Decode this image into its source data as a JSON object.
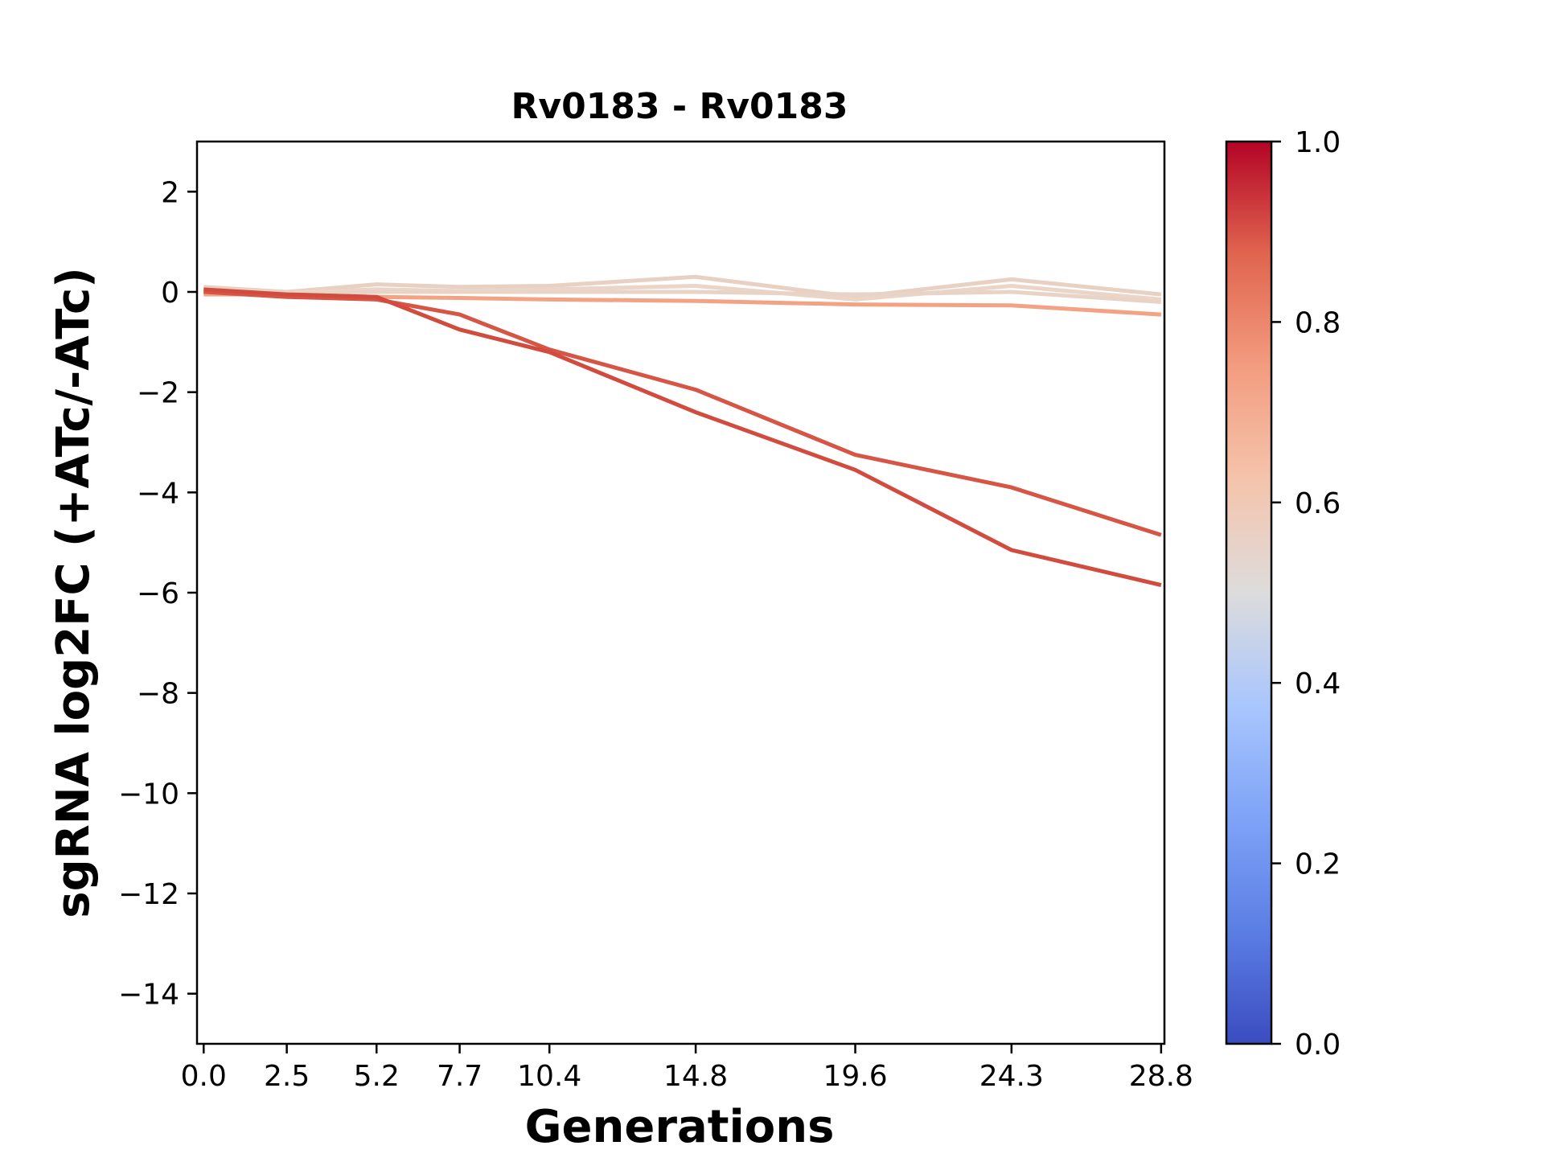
{
  "chart_data": {
    "type": "line",
    "title": "Rv0183 - Rv0183",
    "xlabel": "Generations",
    "ylabel": "sgRNA log2FC (+ATc/-ATc)",
    "x": [
      0.0,
      2.5,
      5.2,
      7.7,
      10.4,
      14.8,
      19.6,
      24.3,
      28.8
    ],
    "x_tick_labels": [
      "0.0",
      "2.5",
      "5.2",
      "7.7",
      "10.4",
      "14.8",
      "19.6",
      "24.3",
      "28.8"
    ],
    "xlim": [
      -0.2,
      28.9
    ],
    "ylim": [
      -15,
      3
    ],
    "y_ticks": [
      2,
      0,
      -2,
      -4,
      -6,
      -8,
      -10,
      -12,
      -14
    ],
    "y_tick_labels": [
      "2",
      "0",
      "−2",
      "−4",
      "−6",
      "−8",
      "−10",
      "−12",
      "−14"
    ],
    "grid": false,
    "colorbar": {
      "colormap": "coolwarm",
      "range": [
        0.0,
        1.0
      ],
      "ticks": [
        0.0,
        0.2,
        0.4,
        0.6,
        0.8,
        1.0
      ],
      "tick_labels": [
        "0.0",
        "0.2",
        "0.4",
        "0.6",
        "0.8",
        "1.0"
      ]
    },
    "series": [
      {
        "color_value": 0.58,
        "color": "#e8d0c2",
        "values": [
          0.1,
          0.0,
          0.15,
          0.1,
          0.12,
          0.3,
          -0.1,
          0.25,
          -0.05
        ]
      },
      {
        "color_value": 0.57,
        "color": "#ead5c8",
        "values": [
          0.05,
          -0.02,
          0.05,
          0.02,
          0.05,
          0.12,
          -0.15,
          0.12,
          -0.15
        ]
      },
      {
        "color_value": 0.56,
        "color": "#e8d4c6",
        "values": [
          0.0,
          -0.05,
          0.0,
          0.0,
          0.0,
          0.0,
          -0.05,
          0.0,
          -0.2
        ]
      },
      {
        "color_value": 0.72,
        "color": "#f3a383",
        "values": [
          -0.05,
          -0.05,
          -0.1,
          -0.12,
          -0.15,
          -0.18,
          -0.25,
          -0.27,
          -0.45
        ]
      },
      {
        "color_value": 0.9,
        "color": "#d65545",
        "values": [
          0.0,
          -0.1,
          -0.15,
          -0.45,
          -1.15,
          -1.95,
          -3.25,
          -3.9,
          -4.85
        ]
      },
      {
        "color_value": 0.92,
        "color": "#d24b3f",
        "values": [
          0.05,
          -0.05,
          -0.1,
          -0.75,
          -1.2,
          -2.4,
          -3.55,
          -5.15,
          -5.85
        ]
      }
    ]
  }
}
